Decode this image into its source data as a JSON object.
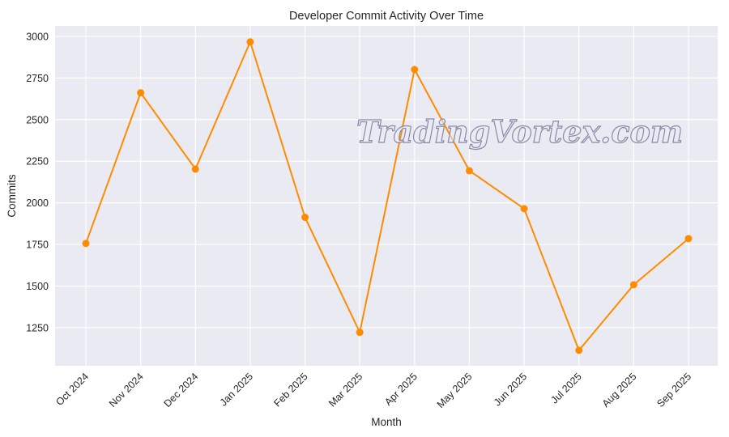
{
  "chart_data": {
    "type": "line",
    "title": "Developer Commit Activity Over Time",
    "xlabel": "Month",
    "ylabel": "Commits",
    "categories": [
      "Oct 2024",
      "Nov 2024",
      "Dec 2024",
      "Jan 2025",
      "Feb 2025",
      "Mar 2025",
      "Apr 2025",
      "May 2025",
      "Jun 2025",
      "Jul 2025",
      "Aug 2025",
      "Sep 2025"
    ],
    "series": [
      {
        "name": "Commits",
        "values": [
          1756,
          2661,
          2203,
          2967,
          1913,
          1222,
          2801,
          2193,
          1965,
          1114,
          1508,
          1785
        ],
        "color": "#ff8c00"
      }
    ],
    "yticks": [
      1250,
      1500,
      1750,
      2000,
      2250,
      2500,
      2750,
      3000
    ],
    "ylim": [
      1021,
      3063
    ],
    "grid": true,
    "background": "#eaeaf2"
  },
  "watermark": "TradingVortex.com"
}
